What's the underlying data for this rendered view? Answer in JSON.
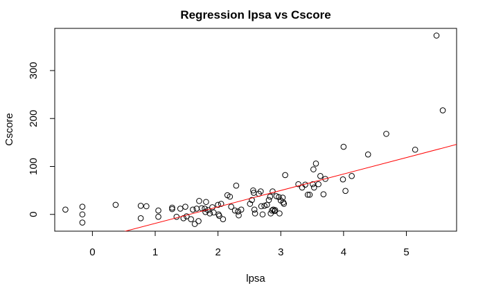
{
  "chart_data": {
    "type": "scatter",
    "title": "Regression lpsa vs Cscore",
    "xlabel": "lpsa",
    "ylabel": "Cscore",
    "xlim": [
      -0.6,
      5.8
    ],
    "ylim": [
      -35,
      388
    ],
    "xticks": [
      0,
      1,
      2,
      3,
      4,
      5
    ],
    "yticks": [
      0,
      100,
      200,
      300
    ],
    "grid": false,
    "marker": "open-circle",
    "point_color": "#000000",
    "points": [
      [
        -0.43,
        10
      ],
      [
        -0.16,
        16
      ],
      [
        -0.16,
        0
      ],
      [
        -0.16,
        -17
      ],
      [
        0.37,
        20
      ],
      [
        0.77,
        18
      ],
      [
        0.77,
        -8
      ],
      [
        0.86,
        17
      ],
      [
        1.05,
        8
      ],
      [
        1.05,
        -5
      ],
      [
        1.27,
        14
      ],
      [
        1.27,
        11
      ],
      [
        1.34,
        -5
      ],
      [
        1.4,
        12
      ],
      [
        1.45,
        -8
      ],
      [
        1.48,
        16
      ],
      [
        1.5,
        -4
      ],
      [
        1.57,
        -10
      ],
      [
        1.6,
        10
      ],
      [
        1.63,
        -20
      ],
      [
        1.66,
        12
      ],
      [
        1.69,
        -14
      ],
      [
        1.7,
        28
      ],
      [
        1.74,
        13
      ],
      [
        1.79,
        12
      ],
      [
        1.8,
        5
      ],
      [
        1.81,
        26
      ],
      [
        1.84,
        9
      ],
      [
        1.87,
        2
      ],
      [
        1.91,
        15
      ],
      [
        1.93,
        4
      ],
      [
        2.0,
        20
      ],
      [
        2.01,
        0
      ],
      [
        2.02,
        -3
      ],
      [
        2.05,
        22
      ],
      [
        2.08,
        -10
      ],
      [
        2.15,
        40
      ],
      [
        2.19,
        37
      ],
      [
        2.21,
        16
      ],
      [
        2.27,
        8
      ],
      [
        2.29,
        60
      ],
      [
        2.32,
        6
      ],
      [
        2.33,
        -2
      ],
      [
        2.37,
        10
      ],
      [
        2.51,
        22
      ],
      [
        2.54,
        30
      ],
      [
        2.56,
        50
      ],
      [
        2.57,
        45
      ],
      [
        2.58,
        10
      ],
      [
        2.59,
        2
      ],
      [
        2.65,
        43
      ],
      [
        2.68,
        48
      ],
      [
        2.69,
        17
      ],
      [
        2.71,
        0
      ],
      [
        2.74,
        18
      ],
      [
        2.78,
        20
      ],
      [
        2.81,
        30
      ],
      [
        2.83,
        37
      ],
      [
        2.84,
        2
      ],
      [
        2.86,
        8
      ],
      [
        2.87,
        48
      ],
      [
        2.88,
        10
      ],
      [
        2.9,
        7
      ],
      [
        2.91,
        9
      ],
      [
        2.93,
        38
      ],
      [
        2.97,
        36
      ],
      [
        2.98,
        2
      ],
      [
        3.0,
        29
      ],
      [
        3.03,
        35
      ],
      [
        3.04,
        25
      ],
      [
        3.05,
        22
      ],
      [
        3.07,
        82
      ],
      [
        3.28,
        63
      ],
      [
        3.34,
        56
      ],
      [
        3.39,
        62
      ],
      [
        3.43,
        41
      ],
      [
        3.46,
        41
      ],
      [
        3.51,
        63
      ],
      [
        3.52,
        94
      ],
      [
        3.53,
        56
      ],
      [
        3.56,
        106
      ],
      [
        3.6,
        63
      ],
      [
        3.63,
        80
      ],
      [
        3.68,
        42
      ],
      [
        3.71,
        74
      ],
      [
        3.99,
        73
      ],
      [
        4.0,
        141
      ],
      [
        4.03,
        49
      ],
      [
        4.13,
        80
      ],
      [
        4.39,
        125
      ],
      [
        4.68,
        168
      ],
      [
        5.14,
        135
      ],
      [
        5.48,
        373
      ],
      [
        5.58,
        217
      ]
    ],
    "regression_line": {
      "intercept": -53.0,
      "slope": 34.3,
      "color": "#ff0000"
    }
  }
}
